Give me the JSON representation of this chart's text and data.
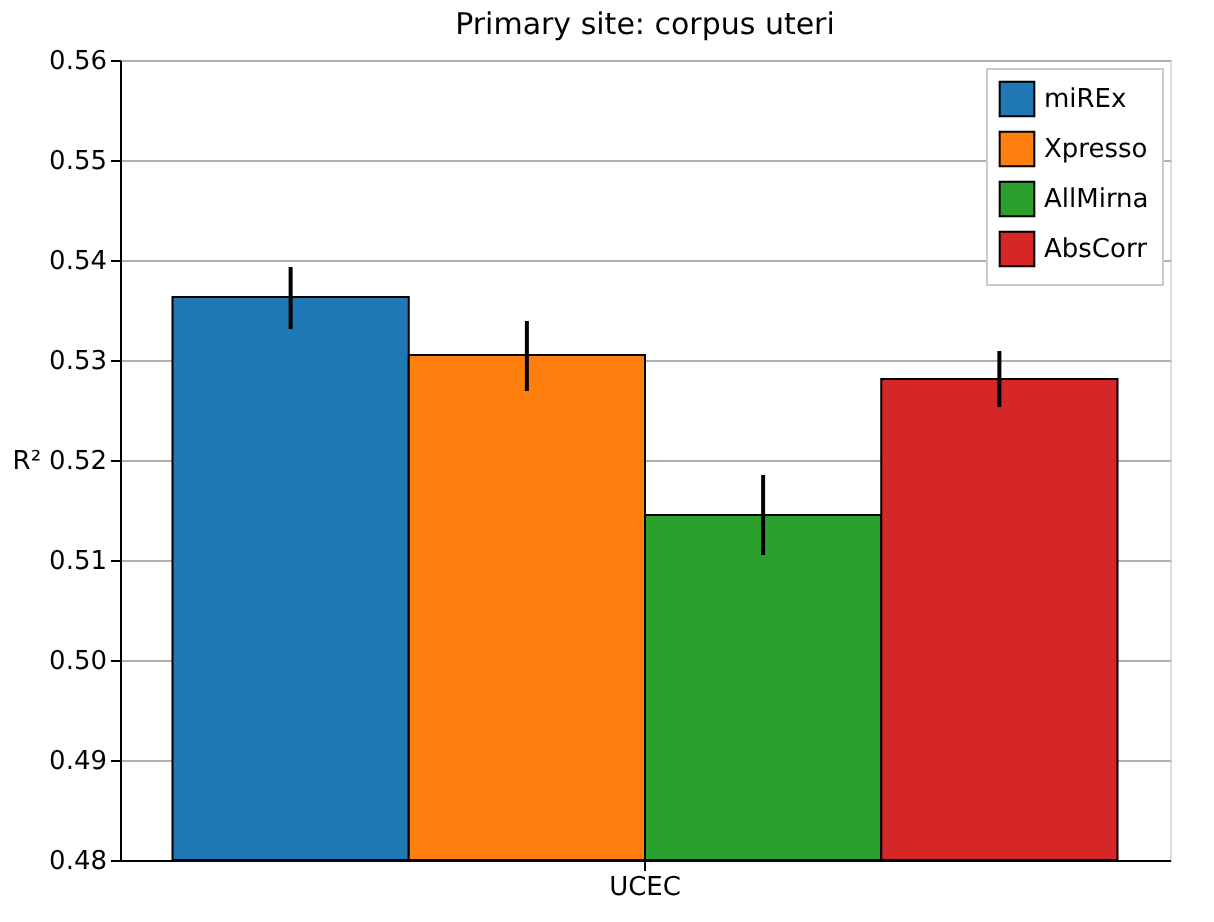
{
  "chart_data": {
    "type": "bar",
    "title": "Primary site: corpus uteri",
    "ylabel": "R²",
    "categories": [
      "UCEC"
    ],
    "series": [
      {
        "name": "miREx",
        "color": "#1f77b4",
        "values": [
          0.5363
        ],
        "errors": [
          [
            0.5331,
            0.5393
          ]
        ]
      },
      {
        "name": "Xpresso",
        "color": "#ff7f0e",
        "values": [
          0.5305
        ],
        "errors": [
          [
            0.5269,
            0.5339
          ]
        ]
      },
      {
        "name": "AllMirna",
        "color": "#2ca02c",
        "values": [
          0.5145
        ],
        "errors": [
          [
            0.5105,
            0.5185
          ]
        ]
      },
      {
        "name": "AbsCorr",
        "color": "#d62728",
        "values": [
          0.5281
        ],
        "errors": [
          [
            0.5253,
            0.5309
          ]
        ]
      }
    ],
    "ylim": [
      0.48,
      0.56
    ],
    "yticks": [
      0.48,
      0.49,
      {
        "value": 0.5,
        "label": "0.50"
      },
      0.51,
      0.52,
      0.53,
      0.54,
      0.55,
      0.56
    ],
    "grid": "y",
    "legend": "top right"
  }
}
